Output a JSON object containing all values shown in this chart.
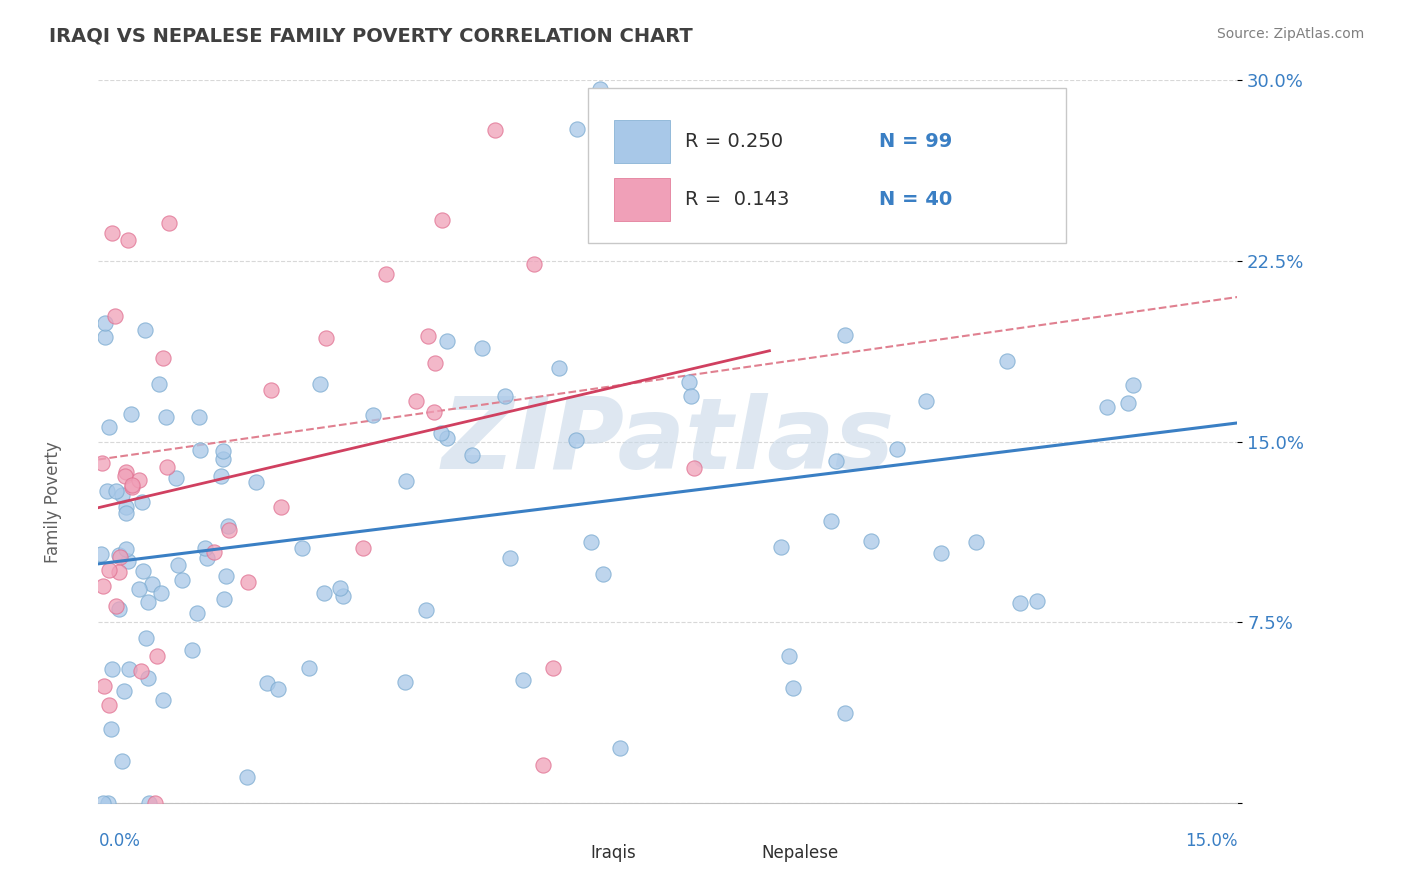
{
  "title": "IRAQI VS NEPALESE FAMILY POVERTY CORRELATION CHART",
  "source_text": "Source: ZipAtlas.com",
  "xlabel_bottom_left": "0.0%",
  "xlabel_bottom_right": "15.0%",
  "ylabel": "Family Poverty",
  "yticks": [
    0.0,
    0.075,
    0.15,
    0.225,
    0.3
  ],
  "ytick_labels": [
    "",
    "7.5%",
    "15.0%",
    "22.5%",
    "30.0%"
  ],
  "xlim": [
    0.0,
    0.15
  ],
  "ylim": [
    0.0,
    0.3
  ],
  "blue_R": 0.25,
  "blue_N": 99,
  "pink_R": 0.143,
  "pink_N": 40,
  "blue_color": "#a8c8e8",
  "pink_color": "#f0a0b8",
  "blue_edge_color": "#7aaad0",
  "pink_edge_color": "#e07090",
  "blue_line_color": "#3a7fc4",
  "pink_line_color": "#d04060",
  "dashed_line_color": "#e08090",
  "title_color": "#404040",
  "source_color": "#808080",
  "legend_text_color": "#303030",
  "legend_RN_color": "#3a7fc4",
  "watermark_color": "#c8d8e8",
  "background_color": "#ffffff",
  "grid_color": "#d8d8d8",
  "legend_box_color": "#f0f0f0",
  "legend_box_edge": "#c8c8c8",
  "ytick_color": "#3a7fc4",
  "bottom_legend_color": "#303030"
}
